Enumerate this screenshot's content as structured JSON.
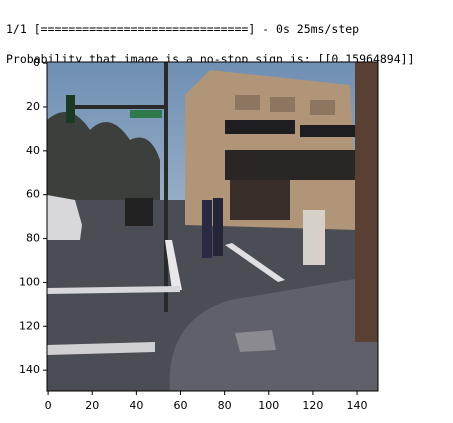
{
  "output": {
    "lines": [
      "1/1 [==============================] - 0s 25ms/step",
      "Probability that image is a no-stop sign is: [[0.15964894]]"
    ]
  },
  "chart_data": {
    "type": "image",
    "xlim": [
      -0.5,
      149.5
    ],
    "ylim": [
      149.5,
      -0.5
    ],
    "xticks": [
      0,
      20,
      40,
      60,
      80,
      100,
      120,
      140
    ],
    "yticks": [
      0,
      20,
      40,
      60,
      80,
      100,
      120,
      140
    ]
  }
}
